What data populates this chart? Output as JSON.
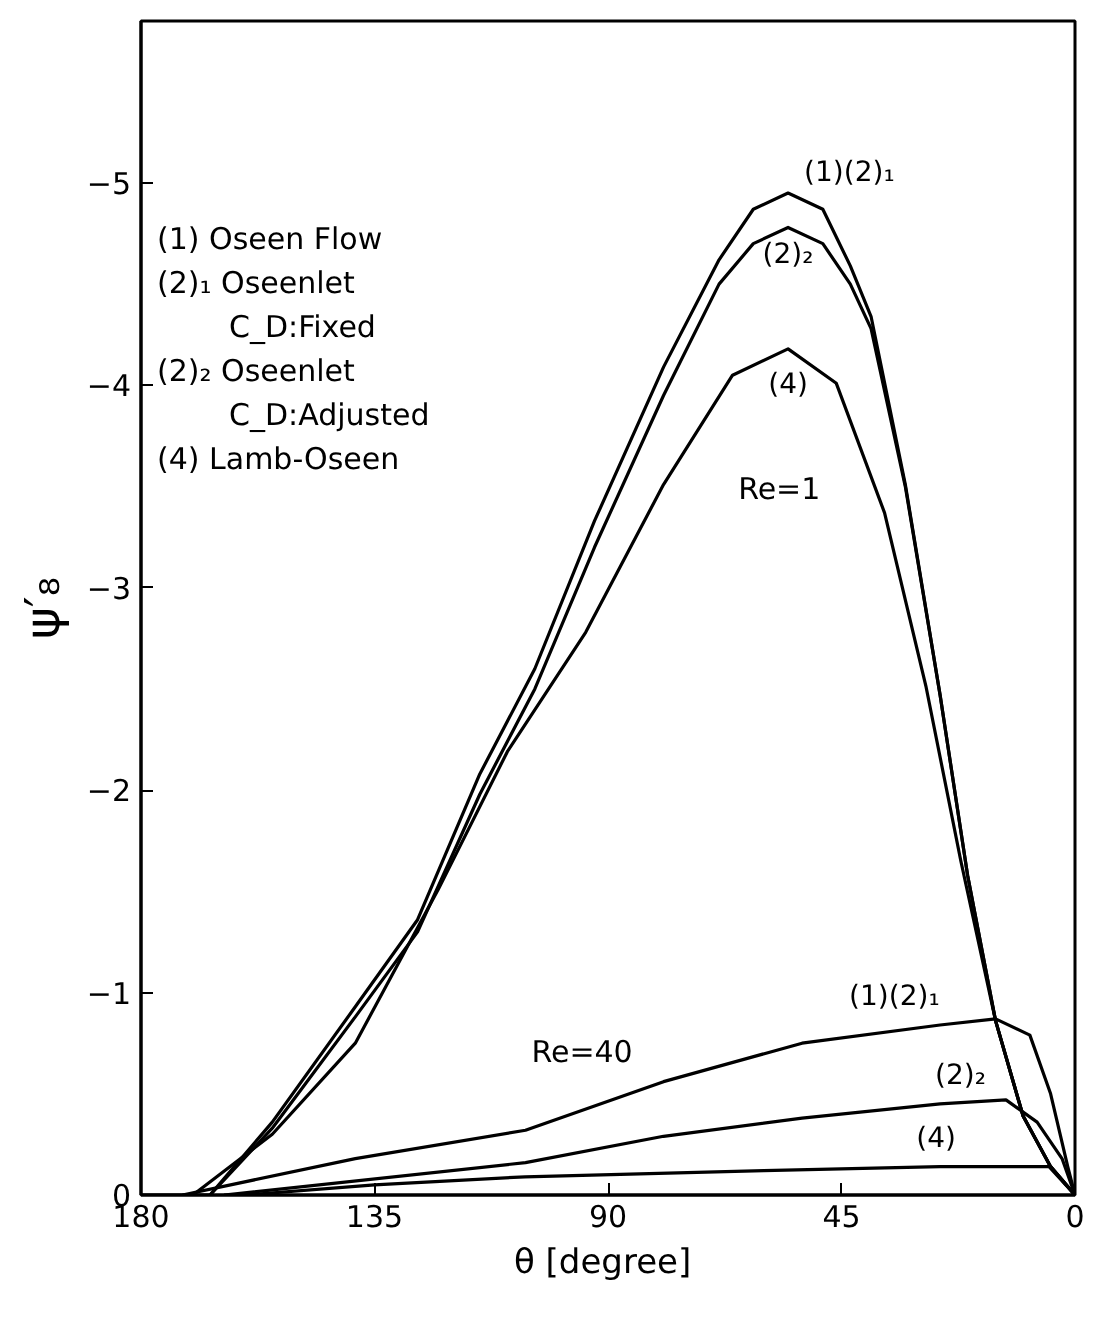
{
  "chart_data": {
    "type": "line",
    "xlabel": "θ  [degree]",
    "ylabel": "ψ′₈",
    "xlim": [
      180,
      0
    ],
    "ylim": [
      0,
      -5.8
    ],
    "xticks": [
      180,
      135,
      90,
      45,
      0
    ],
    "yticks": [
      0,
      -1,
      -2,
      -3,
      -4,
      -5
    ],
    "grid": false,
    "line_style": "solid",
    "marker": "none",
    "annotations": [
      "(1) Oseen Flow",
      "(2)₁ Oseenlet",
      "C_D:Fixed",
      "(2)₂ Oseenlet",
      "C_D:Adjusted",
      "(4) Lamb-Oseen",
      "Re=1",
      "Re=40"
    ],
    "series": [
      {
        "name": "(1)(2)₁",
        "color": "#000000",
        "x": [
          180,
          166.7,
          154.7,
          138.7,
          126.7,
          114.7,
          104.1,
          92.6,
          79.3,
          68.6,
          62.0,
          55.3,
          48.6,
          43.3,
          39.3,
          32.7,
          26.0,
          20.7,
          15.3,
          10.0,
          4.7,
          0
        ],
        "values": [
          0,
          0,
          -0.36,
          -0.93,
          -1.36,
          -2.08,
          -2.6,
          -3.33,
          -4.09,
          -4.62,
          -4.87,
          -4.95,
          -4.87,
          -4.59,
          -4.34,
          -3.51,
          -2.47,
          -1.58,
          -0.86,
          -0.39,
          -0.14,
          0
        ]
      },
      {
        "name": "(2)₂",
        "color": "#000000",
        "x": [
          166.7,
          154.7,
          138.7,
          126.7,
          114.7,
          104.1,
          92.6,
          79.3,
          68.6,
          62.0,
          55.3,
          48.6,
          43.3,
          39.3,
          32.7,
          26.0,
          20.7,
          15.3,
          10.0,
          4.7,
          0
        ],
        "values": [
          0,
          -0.33,
          -0.88,
          -1.3,
          -1.98,
          -2.5,
          -3.2,
          -3.95,
          -4.5,
          -4.7,
          -4.78,
          -4.7,
          -4.5,
          -4.28,
          -3.5,
          -2.47,
          -1.58,
          -0.86,
          -0.39,
          -0.14,
          0
        ]
      },
      {
        "name": "(4)",
        "color": "#000000",
        "x": [
          170,
          154.7,
          138.7,
          122.7,
          109.4,
          94.3,
          79.3,
          66.0,
          55.3,
          46.0,
          36.7,
          28.7,
          22.0,
          15.3,
          10.0,
          4.7,
          0
        ],
        "values": [
          0,
          -0.3,
          -0.75,
          -1.51,
          -2.19,
          -2.78,
          -3.51,
          -4.05,
          -4.18,
          -4.01,
          -3.37,
          -2.51,
          -1.65,
          -0.86,
          -0.39,
          -0.14,
          0
        ]
      },
      {
        "name": "(1)(2)₁",
        "color": "#000000",
        "x": [
          172,
          138.7,
          105.9,
          79.3,
          52.6,
          26.0,
          15.3,
          8.7,
          4.7,
          1.4,
          0
        ],
        "values": [
          0,
          -0.18,
          -0.32,
          -0.56,
          -0.75,
          -0.84,
          -0.87,
          -0.79,
          -0.5,
          -0.14,
          0
        ]
      },
      {
        "name": "(2)₂",
        "color": "#000000",
        "x": [
          164,
          105.9,
          79.3,
          52.6,
          26.0,
          13.3,
          7.3,
          2.5,
          0
        ],
        "values": [
          0,
          -0.16,
          -0.29,
          -0.38,
          -0.45,
          -0.47,
          -0.36,
          -0.18,
          0
        ]
      },
      {
        "name": "(4)",
        "color": "#000000",
        "x": [
          160,
          135,
          106,
          60,
          26,
          5,
          0
        ],
        "values": [
          0,
          -0.05,
          -0.09,
          -0.12,
          -0.14,
          -0.14,
          0
        ]
      }
    ]
  }
}
